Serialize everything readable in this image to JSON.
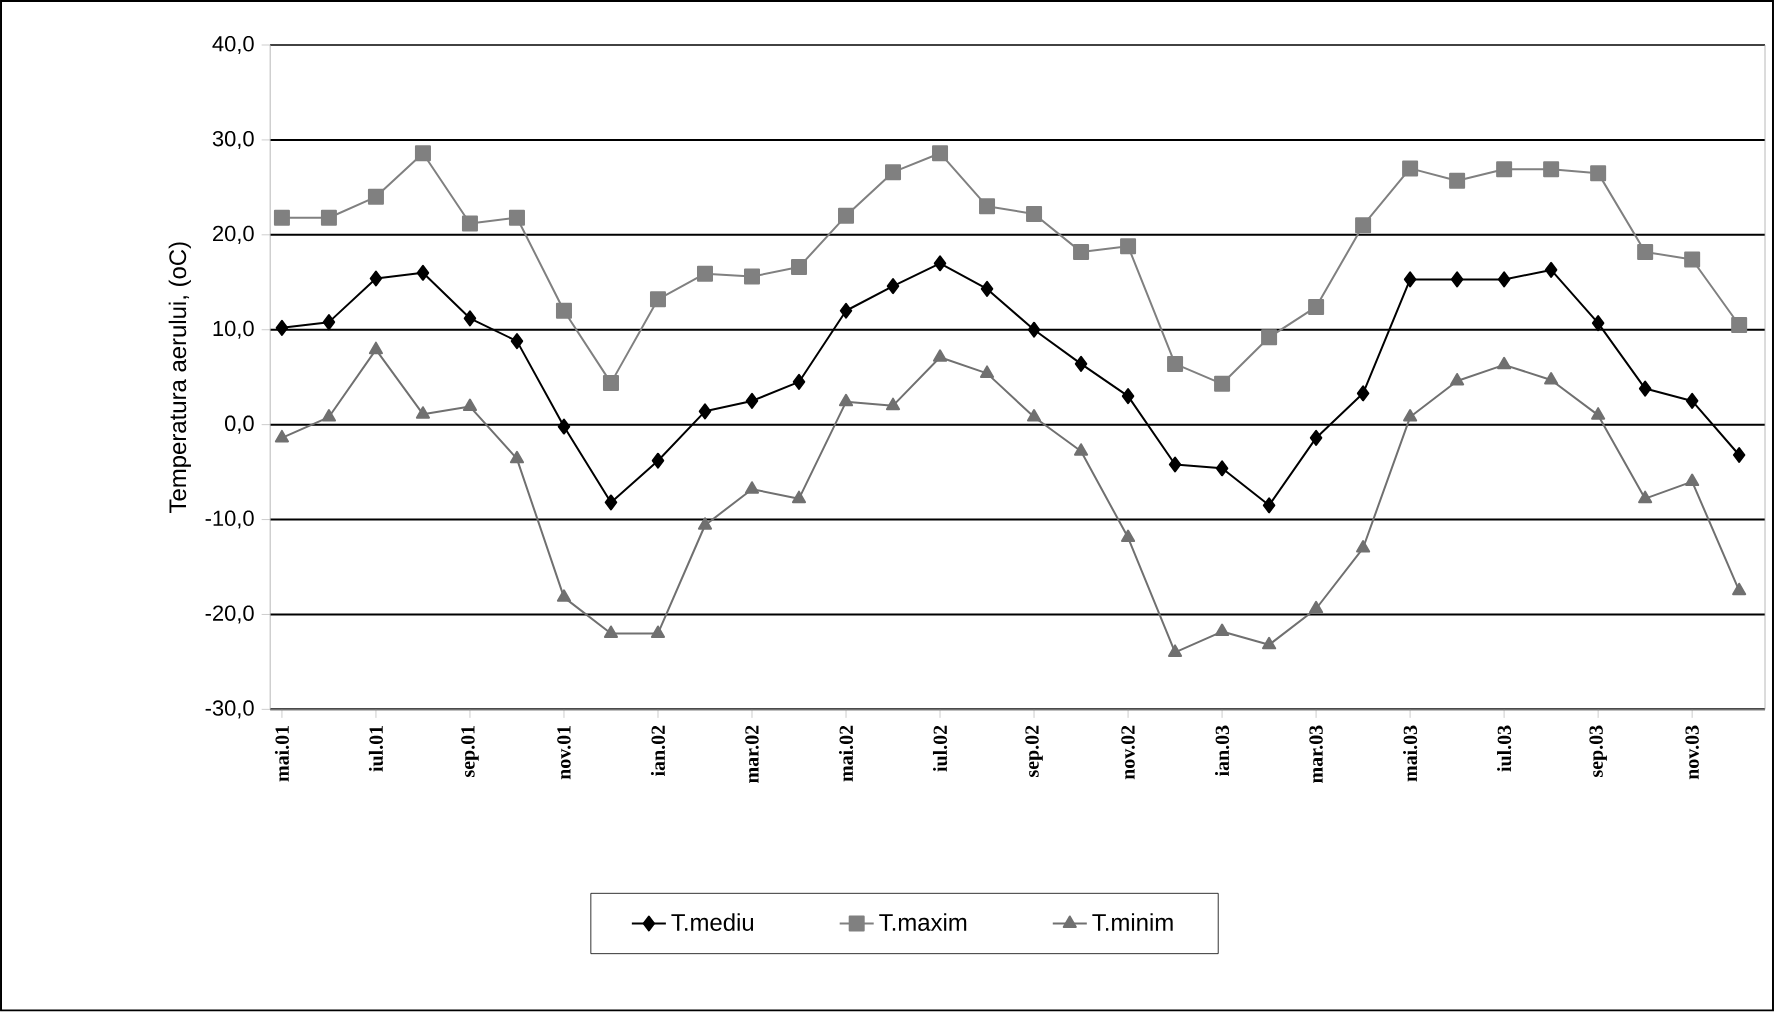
{
  "chart_data": {
    "type": "line",
    "ylabel": "Temperatura aerului, (oC)",
    "categories": [
      "mai.01",
      null,
      "iul.01",
      null,
      "sep.01",
      null,
      "nov.01",
      null,
      "ian.02",
      null,
      "mar.02",
      null,
      "mai.02",
      null,
      "iul.02",
      null,
      "sep.02",
      null,
      "nov.02",
      null,
      "ian.03",
      null,
      "mar.03",
      null,
      "mai.03",
      null,
      "iul.03",
      null,
      "sep.03",
      null,
      "nov.03",
      null
    ],
    "series": [
      {
        "name": "T.mediu",
        "color": "#000000",
        "marker": "diamond",
        "values": [
          10.2,
          10.8,
          15.4,
          16,
          11.2,
          8.8,
          -0.2,
          -8.2,
          -3.8,
          1.4,
          2.5,
          4.5,
          12,
          14.6,
          17,
          14.3,
          10,
          6.4,
          3,
          -4.2,
          -4.6,
          -8.5,
          -1.4,
          3.3,
          15.3,
          15.3,
          15.3,
          16.3,
          10.7,
          3.8,
          2.5,
          -3.2
        ]
      },
      {
        "name": "T.maxim",
        "color": "#808080",
        "marker": "square",
        "values": [
          21.8,
          21.8,
          24,
          28.6,
          21.2,
          21.8,
          12,
          4.4,
          13.2,
          15.9,
          15.6,
          16.6,
          22,
          26.6,
          28.6,
          23,
          22.2,
          18.2,
          18.8,
          6.4,
          4.3,
          9.2,
          12.4,
          21,
          27,
          25.7,
          26.9,
          26.9,
          26.5,
          18.2,
          17.4,
          10.5
        ]
      },
      {
        "name": "T.minim",
        "color": "#707070",
        "marker": "triangle",
        "values": [
          -1.4,
          0.8,
          7.9,
          1.1,
          1.9,
          -3.6,
          -18.2,
          -22,
          -22,
          -10.6,
          -6.8,
          -7.8,
          2.4,
          2,
          7.1,
          5.4,
          0.8,
          -2.8,
          -11.9,
          -24,
          -21.8,
          -23.2,
          -19.4,
          -13,
          0.8,
          4.6,
          6.3,
          4.7,
          1.0,
          -7.8,
          -6,
          -17.5
        ]
      }
    ],
    "ylim": [
      -30,
      40
    ],
    "yticks": [
      {
        "value": -30,
        "label": "-30,0"
      },
      {
        "value": -20,
        "label": "-20,0"
      },
      {
        "value": -10,
        "label": "-10,0"
      },
      {
        "value": 0,
        "label": "0,0"
      },
      {
        "value": 10,
        "label": "10,0"
      },
      {
        "value": 20,
        "label": "20,0"
      },
      {
        "value": 30,
        "label": "30,0"
      },
      {
        "value": 40,
        "label": "40,0"
      }
    ],
    "grid": "y",
    "legend": "bottom",
    "line_style": "solid"
  }
}
